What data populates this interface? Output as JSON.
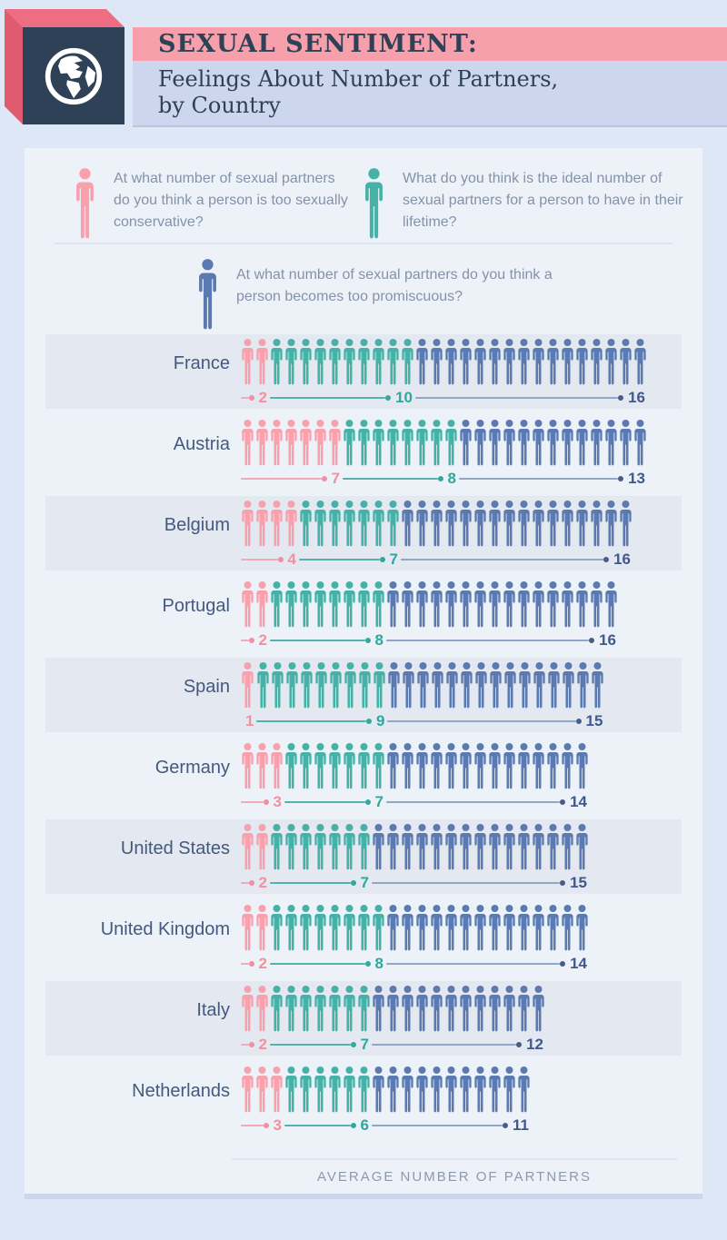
{
  "header": {
    "title": "SEXUAL SENTIMENT:",
    "subtitle_line1": "Feelings About Number of Partners,",
    "subtitle_line2": "by Country"
  },
  "palette": {
    "conservative": {
      "figure": "#f9a0ad",
      "line": "#f2aab5",
      "dot": "#f08fa0",
      "number": "#f2919e"
    },
    "ideal": {
      "figure": "#46b1a7",
      "line": "#54b3a9",
      "dot": "#33a89d",
      "number": "#2ea89c"
    },
    "promiscuous": {
      "figure": "#5a7ab1",
      "line": "#92a7c8",
      "dot": "#435d8d",
      "number": "#40598c"
    }
  },
  "theme": {
    "navy": "#2e4156",
    "band_pink": "#f7a0ac",
    "band_lavender": "#ccd6ec",
    "ribbon_top": "#ed6e82",
    "ribbon_left": "#e05a70",
    "page_bg": "#dde7f5",
    "card_bg": "#edf2f9",
    "row_stripe": "#e3e8f1"
  },
  "chart_data": {
    "type": "pictogram",
    "title": "Feelings About Number of Partners, by Country",
    "xlabel": "AVERAGE NUMBER OF PARTNERS",
    "series": [
      {
        "key": "conservative",
        "question": "At what number of sexual partners do you think a person is too sexually conservative?"
      },
      {
        "key": "ideal",
        "question": "What do you think is the ideal number of sexual partners for a person to have in their lifetime?"
      },
      {
        "key": "promiscuous",
        "question": "At what number of sexual partners do you think a person becomes too promiscuous?"
      }
    ],
    "rows": [
      {
        "country": "France",
        "conservative": 2,
        "ideal": 10,
        "promiscuous": 16
      },
      {
        "country": "Austria",
        "conservative": 7,
        "ideal": 8,
        "promiscuous": 13
      },
      {
        "country": "Belgium",
        "conservative": 4,
        "ideal": 7,
        "promiscuous": 16
      },
      {
        "country": "Portugal",
        "conservative": 2,
        "ideal": 8,
        "promiscuous": 16
      },
      {
        "country": "Spain",
        "conservative": 1,
        "ideal": 9,
        "promiscuous": 15
      },
      {
        "country": "Germany",
        "conservative": 3,
        "ideal": 7,
        "promiscuous": 14
      },
      {
        "country": "United States",
        "conservative": 2,
        "ideal": 7,
        "promiscuous": 15
      },
      {
        "country": "United Kingdom",
        "conservative": 2,
        "ideal": 8,
        "promiscuous": 14
      },
      {
        "country": "Italy",
        "conservative": 2,
        "ideal": 7,
        "promiscuous": 12
      },
      {
        "country": "Netherlands",
        "conservative": 3,
        "ideal": 6,
        "promiscuous": 11
      }
    ]
  },
  "footer": {
    "caption": "AVERAGE NUMBER OF PARTNERS"
  }
}
